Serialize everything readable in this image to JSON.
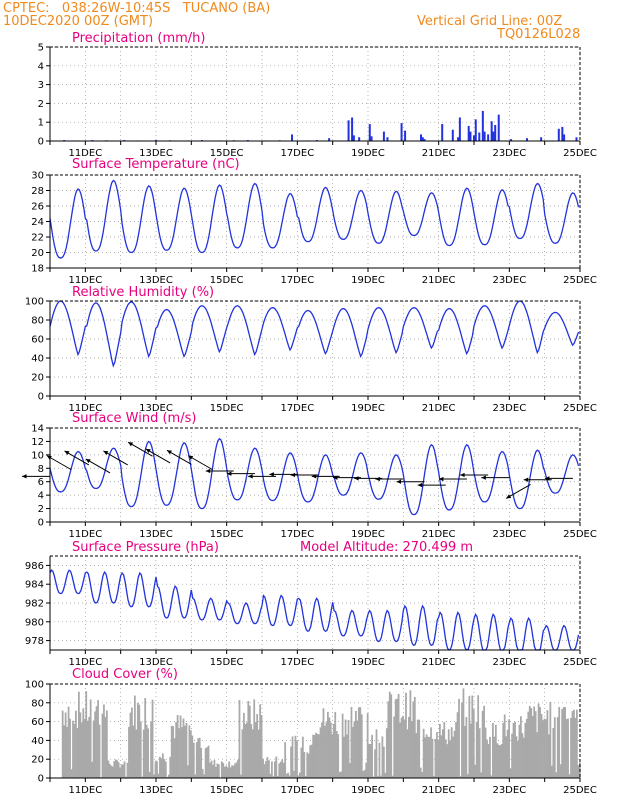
{
  "header": {
    "station": "CPTEC:   038:26W-10:45S   TUCANO (BA)",
    "date": "10DEC2020 00Z (GMT)",
    "grid_note": "Vertical Grid Line: 00Z",
    "code": "TQ0126L028"
  },
  "colors": {
    "header": "#f08a1e",
    "title": "#e6007e",
    "line": "#2233dd",
    "cloud": "#a9a9a9",
    "wind": "#000000"
  },
  "chart_data": [
    {
      "id": "precip",
      "type": "bar",
      "title": "Precipitation (mm/h)",
      "xlabels": [
        "11DEC",
        "13DEC",
        "15DEC",
        "17DEC",
        "19DEC",
        "21DEC",
        "23DEC",
        "25DEC"
      ],
      "xrange_days": [
        10,
        25
      ],
      "ylim": [
        0,
        5
      ],
      "yticks": [
        0,
        1,
        2,
        3,
        4,
        5
      ],
      "series": {
        "x_day": [
          10.4,
          10.7,
          11.2,
          11.6,
          12.1,
          12.5,
          13.0,
          13.4,
          13.9,
          14.3,
          14.8,
          15.2,
          15.6,
          16.1,
          16.5,
          16.85,
          17.3,
          17.55,
          17.9,
          18.45,
          18.55,
          18.6,
          18.75,
          19.05,
          19.1,
          19.45,
          19.55,
          19.95,
          20.05,
          20.5,
          20.55,
          20.6,
          21.1,
          21.4,
          21.55,
          21.6,
          21.85,
          21.9,
          22.0,
          22.05,
          22.15,
          22.25,
          22.3,
          22.4,
          22.5,
          22.55,
          22.6,
          22.7,
          23.05,
          23.5,
          23.9,
          24.4,
          24.5,
          24.55,
          24.9
        ],
        "values": [
          0.05,
          0.03,
          0.05,
          0.04,
          0.05,
          0.03,
          0.05,
          0.04,
          0.03,
          0.05,
          0.03,
          0.04,
          0.05,
          0.03,
          0.04,
          0.35,
          0.03,
          0.05,
          0.15,
          1.1,
          1.25,
          0.3,
          0.2,
          0.9,
          0.25,
          0.5,
          0.2,
          0.95,
          0.55,
          0.35,
          0.2,
          0.1,
          0.9,
          0.6,
          0.2,
          1.25,
          0.8,
          0.5,
          0.3,
          1.15,
          0.45,
          1.6,
          0.5,
          0.35,
          1.05,
          0.5,
          0.85,
          1.4,
          0.1,
          0.15,
          0.2,
          0.65,
          0.75,
          0.35,
          0.2
        ]
      }
    },
    {
      "id": "temp",
      "type": "line",
      "title": "Surface Temperature (nC)",
      "xlabels": [
        "11DEC",
        "13DEC",
        "15DEC",
        "17DEC",
        "19DEC",
        "21DEC",
        "23DEC",
        "25DEC"
      ],
      "xrange_days": [
        10,
        25
      ],
      "ylim": [
        18,
        30
      ],
      "yticks": [
        18,
        20,
        22,
        24,
        26,
        28,
        30
      ],
      "daily_min": [
        19.3,
        20.2,
        20.0,
        20.3,
        20.0,
        20.6,
        20.6,
        21.4,
        21.7,
        21.2,
        22.2,
        20.9,
        21.0,
        21.8,
        21.2
      ],
      "daily_max": [
        28.2,
        29.3,
        28.6,
        28.3,
        28.7,
        28.9,
        27.6,
        28.4,
        28.0,
        27.9,
        27.7,
        28.3,
        28.1,
        28.9,
        27.7
      ]
    },
    {
      "id": "rh",
      "type": "line",
      "title": "Relative Humidity (%)",
      "xlabels": [
        "11DEC",
        "13DEC",
        "15DEC",
        "17DEC",
        "19DEC",
        "21DEC",
        "23DEC",
        "25DEC"
      ],
      "xrange_days": [
        10,
        25
      ],
      "ylim": [
        0,
        100
      ],
      "yticks": [
        0,
        20,
        40,
        60,
        80,
        100
      ],
      "daily_min": [
        43,
        31,
        41,
        41,
        46,
        43,
        48,
        44,
        41,
        45,
        50,
        44,
        50,
        45,
        53
      ],
      "daily_max": [
        100,
        98,
        99,
        91,
        95,
        95,
        93,
        90,
        92,
        93,
        93,
        92,
        95,
        100,
        88
      ]
    },
    {
      "id": "wind",
      "type": "line",
      "title": "Surface Wind (m/s)",
      "xlabels": [
        "11DEC",
        "13DEC",
        "15DEC",
        "17DEC",
        "19DEC",
        "21DEC",
        "23DEC",
        "25DEC"
      ],
      "xrange_days": [
        10,
        25
      ],
      "ylim": [
        0,
        14
      ],
      "yticks": [
        0,
        2,
        4,
        6,
        8,
        10,
        12,
        14
      ],
      "daily_min": [
        4.5,
        5.0,
        2.3,
        2.5,
        2.0,
        3.3,
        3.2,
        3.0,
        4.0,
        3.4,
        1.1,
        1.8,
        3.0,
        2.0,
        4.3
      ],
      "daily_max": [
        10.5,
        11.0,
        12.0,
        11.8,
        12.4,
        11.0,
        10.3,
        10.0,
        10.3,
        10.0,
        11.5,
        11.5,
        10.5,
        10.7,
        10.0
      ],
      "arrows": [
        {
          "day": 10.0,
          "speed": 6.8,
          "dir": "W"
        },
        {
          "day": 10.6,
          "speed": 7.8,
          "dir": "NW"
        },
        {
          "day": 11.1,
          "speed": 8.5,
          "dir": "NW"
        },
        {
          "day": 11.7,
          "speed": 7.3,
          "dir": "NW"
        },
        {
          "day": 12.2,
          "speed": 8.5,
          "dir": "NW"
        },
        {
          "day": 12.9,
          "speed": 9.8,
          "dir": "NW"
        },
        {
          "day": 13.4,
          "speed": 8.8,
          "dir": "NW"
        },
        {
          "day": 14.0,
          "speed": 8.6,
          "dir": "NW"
        },
        {
          "day": 14.6,
          "speed": 7.8,
          "dir": "NW"
        },
        {
          "day": 15.2,
          "speed": 7.6,
          "dir": "W"
        },
        {
          "day": 15.8,
          "speed": 7.2,
          "dir": "W"
        },
        {
          "day": 16.4,
          "speed": 6.8,
          "dir": "W"
        },
        {
          "day": 17.0,
          "speed": 7.1,
          "dir": "W"
        },
        {
          "day": 17.6,
          "speed": 7.0,
          "dir": "W"
        },
        {
          "day": 18.2,
          "speed": 6.8,
          "dir": "W"
        },
        {
          "day": 18.8,
          "speed": 6.6,
          "dir": "W"
        },
        {
          "day": 19.4,
          "speed": 6.5,
          "dir": "W"
        },
        {
          "day": 20.0,
          "speed": 6.4,
          "dir": "W"
        },
        {
          "day": 20.6,
          "speed": 6.0,
          "dir": "W"
        },
        {
          "day": 21.2,
          "speed": 5.5,
          "dir": "W"
        },
        {
          "day": 21.8,
          "speed": 6.4,
          "dir": "W"
        },
        {
          "day": 22.4,
          "speed": 7.0,
          "dir": "W"
        },
        {
          "day": 23.0,
          "speed": 6.6,
          "dir": "W"
        },
        {
          "day": 23.6,
          "speed": 5.6,
          "dir": "SW"
        },
        {
          "day": 24.2,
          "speed": 6.3,
          "dir": "W"
        },
        {
          "day": 24.8,
          "speed": 6.5,
          "dir": "W"
        }
      ]
    },
    {
      "id": "press",
      "type": "line",
      "title": "Surface Pressure (hPa)",
      "annotation": "Model Altitude: 270.499 m",
      "xlabels": [
        "11DEC",
        "13DEC",
        "15DEC",
        "17DEC",
        "19DEC",
        "21DEC",
        "23DEC",
        "25DEC"
      ],
      "xrange_days": [
        10,
        25
      ],
      "ylim": [
        977,
        987
      ],
      "yticks": [
        978,
        980,
        982,
        984,
        986
      ],
      "daily_max": [
        985.5,
        985.3,
        985.2,
        983.8,
        982.5,
        982.0,
        982.8,
        982.5,
        981.2,
        981.2,
        981.7,
        981.0,
        980.8,
        980.4,
        979.6
      ],
      "daily_min": [
        983.0,
        982.0,
        981.6,
        980.4,
        980.2,
        979.8,
        979.6,
        979.0,
        978.5,
        977.9,
        977.5,
        977.0,
        976.8,
        976.6,
        976.9
      ]
    },
    {
      "id": "cloud",
      "type": "bar",
      "title": "Cloud Cover (%)",
      "xlabels": [
        "11DEC",
        "13DEC",
        "15DEC",
        "17DEC",
        "19DEC",
        "21DEC",
        "23DEC",
        "25DEC"
      ],
      "xrange_days": [
        10,
        25
      ],
      "ylim": [
        0,
        100
      ],
      "yticks": [
        0,
        20,
        40,
        60,
        80,
        100
      ],
      "hourly_step_days": 0.0417,
      "segment_levels": [
        {
          "from": 10.0,
          "to": 10.3,
          "level": 0
        },
        {
          "from": 10.3,
          "to": 11.6,
          "level": 93
        },
        {
          "from": 11.6,
          "to": 12.2,
          "level": 20
        },
        {
          "from": 12.2,
          "to": 12.9,
          "level": 92
        },
        {
          "from": 12.9,
          "to": 13.4,
          "level": 30
        },
        {
          "from": 13.4,
          "to": 14.0,
          "level": 70
        },
        {
          "from": 14.0,
          "to": 14.5,
          "level": 50
        },
        {
          "from": 14.5,
          "to": 15.3,
          "level": 20
        },
        {
          "from": 15.3,
          "to": 16.0,
          "level": 85
        },
        {
          "from": 16.0,
          "to": 16.6,
          "level": 25
        },
        {
          "from": 16.6,
          "to": 17.4,
          "level": 45
        },
        {
          "from": 17.4,
          "to": 18.3,
          "level": 78
        },
        {
          "from": 18.3,
          "to": 19.0,
          "level": 83
        },
        {
          "from": 19.0,
          "to": 19.5,
          "level": 55
        },
        {
          "from": 19.5,
          "to": 20.3,
          "level": 94
        },
        {
          "from": 20.3,
          "to": 21.0,
          "level": 70
        },
        {
          "from": 21.0,
          "to": 21.5,
          "level": 62
        },
        {
          "from": 21.5,
          "to": 22.3,
          "level": 96
        },
        {
          "from": 22.3,
          "to": 22.8,
          "level": 60
        },
        {
          "from": 22.8,
          "to": 23.5,
          "level": 70
        },
        {
          "from": 23.5,
          "to": 24.2,
          "level": 82
        },
        {
          "from": 24.2,
          "to": 25.0,
          "level": 95
        }
      ]
    }
  ]
}
